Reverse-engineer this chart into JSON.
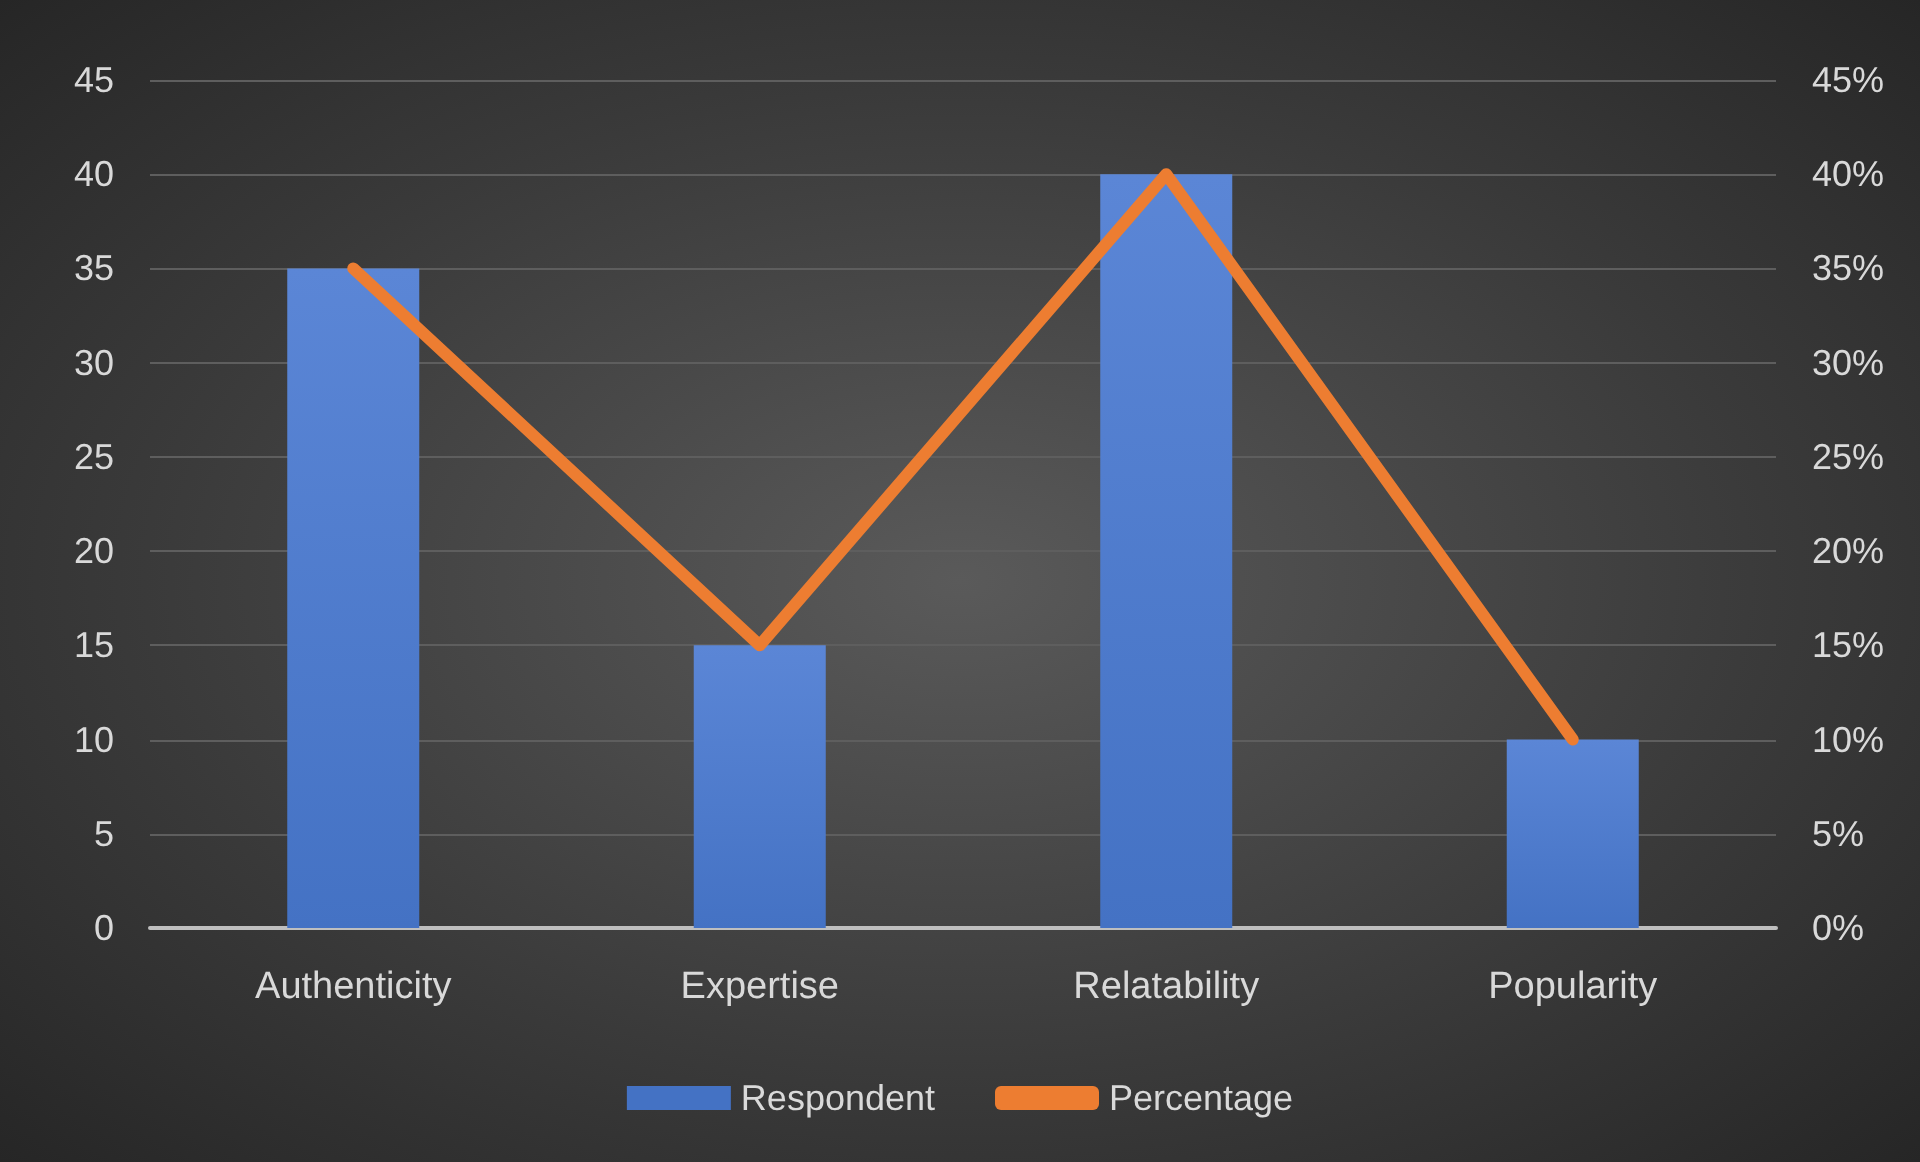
{
  "chart_data": {
    "type": "bar",
    "categories": [
      "Authenticity",
      "Expertise",
      "Relatability",
      "Popularity"
    ],
    "series": [
      {
        "name": "Respondent",
        "color": "#4472c4",
        "values": [
          35,
          15,
          40,
          10
        ]
      },
      {
        "name": "Percentage",
        "type": "line",
        "axis": "y2",
        "color": "#ed7d31",
        "values": [
          35,
          15,
          40,
          10
        ],
        "marker": "none"
      }
    ],
    "ylim": [
      0,
      45
    ],
    "yticks": [
      0,
      5,
      10,
      15,
      20,
      25,
      30,
      35,
      40,
      45
    ],
    "y2lim": [
      0,
      45
    ],
    "y2ticks": [
      {
        "value": 0,
        "label": "0%"
      },
      {
        "value": 5,
        "label": "5%"
      },
      {
        "value": 10,
        "label": "10%"
      },
      {
        "value": 15,
        "label": "15%"
      },
      {
        "value": 20,
        "label": "20%"
      },
      {
        "value": 25,
        "label": "25%"
      },
      {
        "value": 30,
        "label": "30%"
      },
      {
        "value": 35,
        "label": "35%"
      },
      {
        "value": 40,
        "label": "40%"
      },
      {
        "value": 45,
        "label": "45%"
      }
    ],
    "grid": "y",
    "legend": "bottom"
  }
}
